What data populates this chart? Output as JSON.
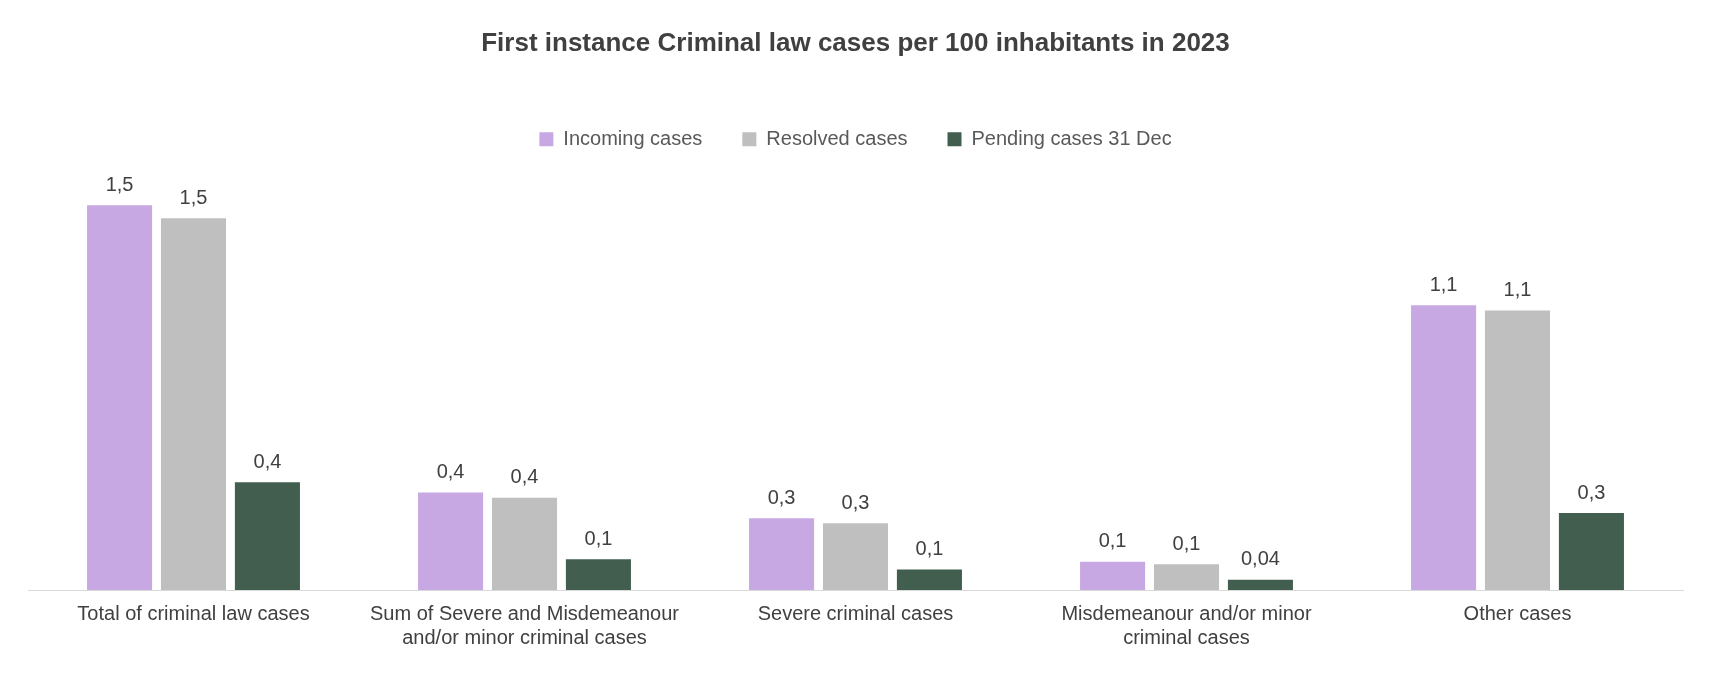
{
  "chart_data": {
    "type": "bar",
    "title": "First instance Criminal law cases per 100 inhabitants in 2023",
    "categories": [
      "Total of criminal law cases",
      "Sum of Severe and Misdemeanour and/or minor criminal cases",
      "Severe criminal cases",
      "Misdemeanour and/or minor criminal cases",
      "Other cases"
    ],
    "legend": "top",
    "grid": false,
    "series": [
      {
        "name": "Incoming cases",
        "color": "#c8a8e2",
        "values": [
          1.5,
          0.38,
          0.28,
          0.11,
          1.11
        ],
        "value_labels": [
          "1,5",
          "0,4",
          "0,3",
          "0,1",
          "1,1"
        ]
      },
      {
        "name": "Resolved cases",
        "color": "#bfbfbf",
        "values": [
          1.45,
          0.36,
          0.26,
          0.1,
          1.09
        ],
        "value_labels": [
          "1,5",
          "0,4",
          "0,3",
          "0,1",
          "1,1"
        ]
      },
      {
        "name": "Pending cases 31 Dec",
        "color": "#425e4f",
        "values": [
          0.42,
          0.12,
          0.08,
          0.04,
          0.3
        ],
        "value_labels": [
          "0,4",
          "0,1",
          "0,1",
          "0,04",
          "0,3"
        ]
      }
    ]
  }
}
